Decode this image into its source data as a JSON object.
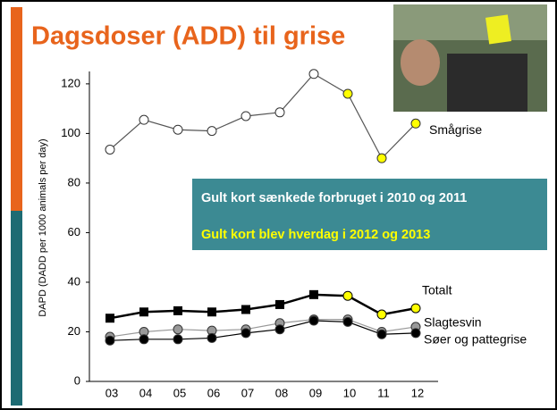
{
  "chart_data": {
    "type": "line",
    "title": "Dagsdoser (ADD) til grise",
    "y_label": "DAPD (DADD per 1000 animals per day)",
    "categories": [
      "03",
      "04",
      "05",
      "06",
      "07",
      "08",
      "09",
      "10",
      "11",
      "12"
    ],
    "ylim": [
      0,
      125
    ],
    "yticks": [
      0,
      20,
      40,
      60,
      80,
      100,
      120
    ],
    "annotations": [
      "Gult kort sænkede forbruget i 2010 og 2011",
      "Gult kort blev hverdag i 2012 og 2013"
    ],
    "series": [
      {
        "name": "Smågrise",
        "color": "#555555",
        "marker": "circle",
        "values": [
          93.5,
          105.5,
          101.5,
          101,
          107,
          108.5,
          124,
          116,
          90,
          104
        ],
        "marker_colors": [
          "#ffffff",
          "#ffffff",
          "#ffffff",
          "#ffffff",
          "#ffffff",
          "#ffffff",
          "#ffffff",
          "#ffff00",
          "#ffff00",
          "#ffff00"
        ]
      },
      {
        "name": "Totalt",
        "color": "#000000",
        "marker": "square",
        "values": [
          25.5,
          28,
          28.5,
          28,
          29,
          31,
          35,
          34.5,
          27,
          29.5
        ],
        "marker_colors": [
          "#000000",
          "#000000",
          "#000000",
          "#000000",
          "#000000",
          "#000000",
          "#000000",
          "#ffff00",
          "#ffff00",
          "#ffff00"
        ]
      },
      {
        "name": "Slagtesvin",
        "color": "#999999",
        "marker": "circle",
        "values": [
          18,
          20,
          21,
          20.5,
          21,
          23.5,
          25,
          25,
          20,
          22
        ],
        "marker_colors": [
          "#999999",
          "#999999",
          "#999999",
          "#999999",
          "#999999",
          "#999999",
          "#999999",
          "#999999",
          "#999999",
          "#999999"
        ]
      },
      {
        "name": "Søer og pattegrise",
        "color": "#000000",
        "marker": "circle",
        "values": [
          16.5,
          17,
          17,
          17.5,
          19.5,
          21,
          24.5,
          24,
          19,
          19.5
        ],
        "marker_colors": [
          "#000000",
          "#000000",
          "#000000",
          "#000000",
          "#000000",
          "#000000",
          "#000000",
          "#000000",
          "#000000",
          "#000000"
        ]
      }
    ]
  }
}
